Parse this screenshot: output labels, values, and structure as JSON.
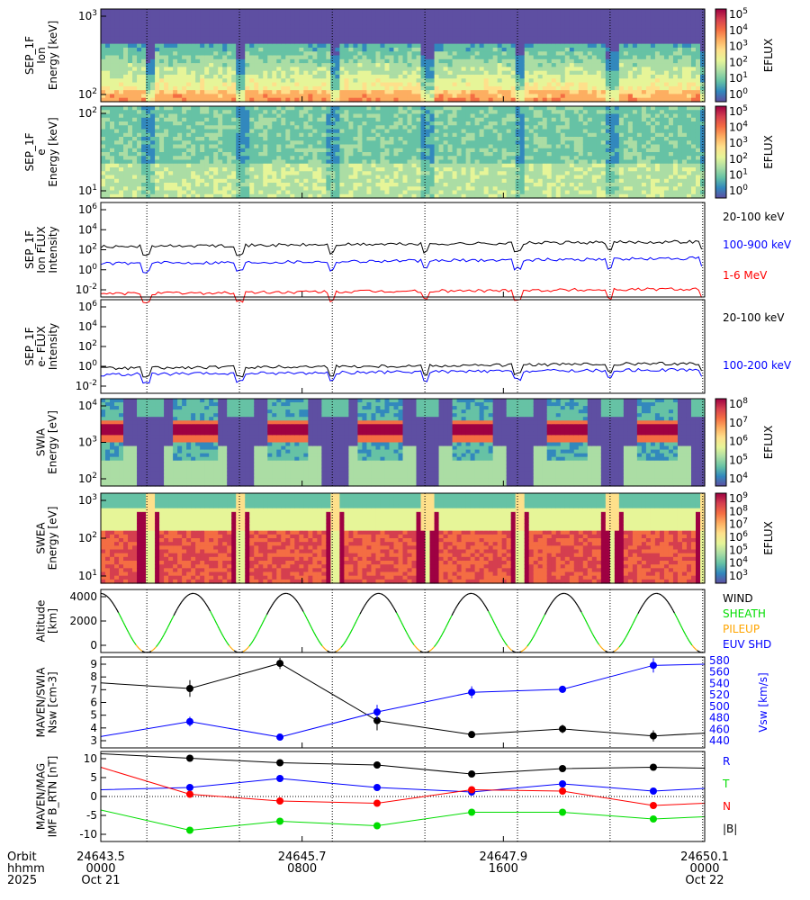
{
  "colors": {
    "black": "#000000",
    "blue": "#0000ff",
    "red": "#ff0000",
    "green": "#00dd00",
    "orange": "#ffa500"
  },
  "time_axis": {
    "row_labels": [
      "Orbit",
      "hhmm",
      "2025"
    ],
    "ticks": [
      {
        "orbit": "24643.5",
        "hhmm": "0000",
        "date": "Oct 21",
        "hour": 0
      },
      {
        "orbit": "24645.7",
        "hhmm": "0800",
        "date": "",
        "hour": 8
      },
      {
        "orbit": "24647.9",
        "hhmm": "1600",
        "date": "",
        "hour": 16
      },
      {
        "orbit": "24650.1",
        "hhmm": "0000",
        "date": "Oct 22",
        "hour": 24
      }
    ],
    "periapsis_hours": [
      1.83,
      5.51,
      9.2,
      12.88,
      16.56,
      20.24,
      23.92
    ]
  },
  "chart_data": [
    {
      "type": "heatmap",
      "name": "sep-ion",
      "ylabel": [
        "SEP_1F",
        "Ion",
        "Energy [keV]"
      ],
      "yticks": [
        "10^3",
        "10^2"
      ],
      "colorbar_label": "EFLUX",
      "colorbar_ticks": [
        "10^5",
        "10^4",
        "10^3",
        "10^2",
        "10^1",
        "10^0"
      ]
    },
    {
      "type": "heatmap",
      "name": "sep-electron",
      "ylabel": [
        "SEP_1F",
        "e",
        "Energy [keV]"
      ],
      "yticks": [
        "10^2",
        "10^1"
      ],
      "colorbar_label": "EFLUX",
      "colorbar_ticks": [
        "10^5",
        "10^4",
        "10^3",
        "10^2",
        "10^1",
        "10^0"
      ]
    },
    {
      "type": "line",
      "name": "sep-ion-flux",
      "ylabel": [
        "SEP_1F",
        "Ion FLUX",
        "Intensity"
      ],
      "yticks": [
        "10^6",
        "10^4",
        "10^2",
        "10^0",
        "10^-2"
      ],
      "ylim_log": [
        -3,
        6
      ],
      "series": [
        {
          "name": "20-100 keV",
          "color": "#000000",
          "base": 1.8
        },
        {
          "name": "100-900 keV",
          "color": "#0000ff",
          "base": 0.2
        },
        {
          "name": "1-6 MeV",
          "color": "#ff0000",
          "base": -2.7
        }
      ]
    },
    {
      "type": "line",
      "name": "sep-e-flux",
      "ylabel": [
        "SEP_1F",
        "e- FLUX",
        "Intensity"
      ],
      "yticks": [
        "10^6",
        "10^4",
        "10^2",
        "10^0",
        "10^-2"
      ],
      "ylim_log": [
        -3,
        6
      ],
      "series": [
        {
          "name": "20-100 keV",
          "color": "#000000",
          "base": -0.6
        },
        {
          "name": "100-200 keV",
          "color": "#0000ff",
          "base": -1.2
        }
      ]
    },
    {
      "type": "heatmap",
      "name": "swia",
      "ylabel": [
        "SWIA",
        "Energy [eV]"
      ],
      "yticks": [
        "10^4",
        "10^3",
        "10^2"
      ],
      "colorbar_label": "EFLUX",
      "colorbar_ticks": [
        "10^8",
        "10^7",
        "10^6",
        "10^5",
        "10^4"
      ]
    },
    {
      "type": "heatmap",
      "name": "swea",
      "ylabel": [
        "SWEA",
        "Energy [eV]"
      ],
      "yticks": [
        "10^3",
        "10^2",
        "10^1"
      ],
      "colorbar_label": "EFLUX",
      "colorbar_ticks": [
        "10^9",
        "10^8",
        "10^7",
        "10^6",
        "10^5",
        "10^4",
        "10^3"
      ]
    },
    {
      "type": "line",
      "name": "altitude",
      "ylabel": [
        "Altitude",
        "[km]"
      ],
      "yticks": [
        "4000",
        "2000",
        "0"
      ],
      "ylim": [
        0,
        4800
      ],
      "max_altitude": 4500,
      "legend": [
        {
          "name": "WIND",
          "color": "#000000"
        },
        {
          "name": "SHEATH",
          "color": "#00dd00"
        },
        {
          "name": "PILEUP",
          "color": "#ffa500"
        },
        {
          "name": "EUV SHD",
          "color": "#0000ff"
        }
      ]
    },
    {
      "type": "line",
      "name": "swia-nsw-vsw",
      "ylabel": [
        "MAVEN/SWIA",
        "Nsw [cm-3]"
      ],
      "ylabel_right": "Vsw [km/s]",
      "ylim": [
        3,
        9
      ],
      "ylim_right": [
        440,
        580
      ],
      "yticks": [
        "9",
        "8",
        "7",
        "6",
        "5",
        "4",
        "3"
      ],
      "yticks_right": [
        "580",
        "560",
        "540",
        "520",
        "500",
        "480",
        "460",
        "440"
      ],
      "series": [
        {
          "name": "Nsw",
          "color": "#000000",
          "hours": [
            0,
            3.54,
            7.12,
            10.98,
            14.74,
            18.35,
            21.96,
            24
          ],
          "values": [
            7.4,
            7.0,
            8.8,
            4.7,
            3.7,
            4.1,
            3.6,
            3.8
          ],
          "err": [
            0,
            0.6,
            0.4,
            0.7,
            0,
            0.3,
            0.4,
            0
          ]
        },
        {
          "name": "Vsw",
          "color": "#0000ff",
          "hours": [
            0,
            3.54,
            7.12,
            10.98,
            14.74,
            18.35,
            21.96,
            24
          ],
          "values": [
            453,
            478,
            452,
            494,
            527,
            532,
            572,
            574
          ],
          "err": [
            0,
            8,
            0,
            12,
            10,
            6,
            12,
            0
          ]
        }
      ]
    },
    {
      "type": "line",
      "name": "mag",
      "ylabel": [
        "MAVEN/MAG",
        "IMF B_RTN [nT]"
      ],
      "ylim": [
        -10,
        10
      ],
      "yticks": [
        "10",
        "5",
        "0",
        "-5",
        "-10"
      ],
      "series": [
        {
          "name": "R",
          "color": "#0000ff",
          "hours": [
            0,
            3.54,
            7.12,
            10.98,
            14.74,
            18.35,
            21.96,
            24
          ],
          "values": [
            1.5,
            2,
            4,
            2,
            1,
            2.8,
            1.2,
            1.8
          ]
        },
        {
          "name": "T",
          "color": "#00dd00",
          "hours": [
            0,
            3.54,
            7.12,
            10.98,
            14.74,
            18.35,
            21.96,
            24
          ],
          "values": [
            -3,
            -7.5,
            -5.5,
            -6.5,
            -3.5,
            -3.5,
            -5,
            -4.5
          ]
        },
        {
          "name": "N",
          "color": "#ff0000",
          "hours": [
            0,
            3.54,
            7.12,
            10.98,
            14.74,
            18.35,
            21.96,
            24
          ],
          "values": [
            6.5,
            0.5,
            -1,
            -1.5,
            1.5,
            1.2,
            -2,
            -1.5
          ]
        },
        {
          "name": "|B|",
          "color": "#000000",
          "hours": [
            0,
            3.54,
            7.12,
            10.98,
            14.74,
            18.35,
            21.96,
            24
          ],
          "values": [
            9.5,
            8.5,
            7.5,
            7,
            5,
            6.2,
            6.5,
            6.3
          ]
        }
      ]
    }
  ]
}
